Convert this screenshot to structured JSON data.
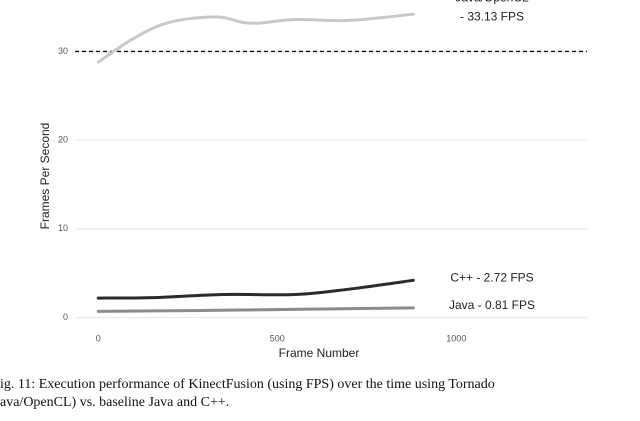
{
  "chart_data": {
    "type": "line",
    "xlabel": "Frame Number",
    "ylabel": "Frames Per Second",
    "xlim": [
      -65,
      1365
    ],
    "ylim": [
      -1.4,
      35.8
    ],
    "xticks": [
      0,
      500,
      1000
    ],
    "yticks": [
      0,
      10,
      20,
      30
    ],
    "grid": true,
    "reference_line": 30,
    "series": [
      {
        "label_lines": [
          "Java/OpenCL",
          "- 33.13 FPS"
        ],
        "color": "#c8c8c8",
        "x": [
          0,
          100,
          200,
          330,
          400,
          450,
          550,
          700,
          880
        ],
        "values": [
          28.8,
          31.5,
          33.3,
          33.9,
          33.3,
          33.2,
          33.6,
          33.5,
          34.2
        ]
      },
      {
        "label_lines": [
          "C++ - 2.72 FPS"
        ],
        "color": "#2b2b2b",
        "x": [
          0,
          150,
          350,
          550,
          700,
          880
        ],
        "values": [
          2.2,
          2.25,
          2.6,
          2.6,
          3.2,
          4.2
        ]
      },
      {
        "label_lines": [
          "Java - 0.81 FPS"
        ],
        "color": "#8c8c8c",
        "x": [
          0,
          400,
          880
        ],
        "values": [
          0.7,
          0.85,
          1.1
        ]
      }
    ],
    "caption_lines": [
      "ig. 11: Execution performance of KinectFusion (using FPS) over the time using Tornado",
      "ava/OpenCL) vs. baseline Java and C++."
    ]
  }
}
